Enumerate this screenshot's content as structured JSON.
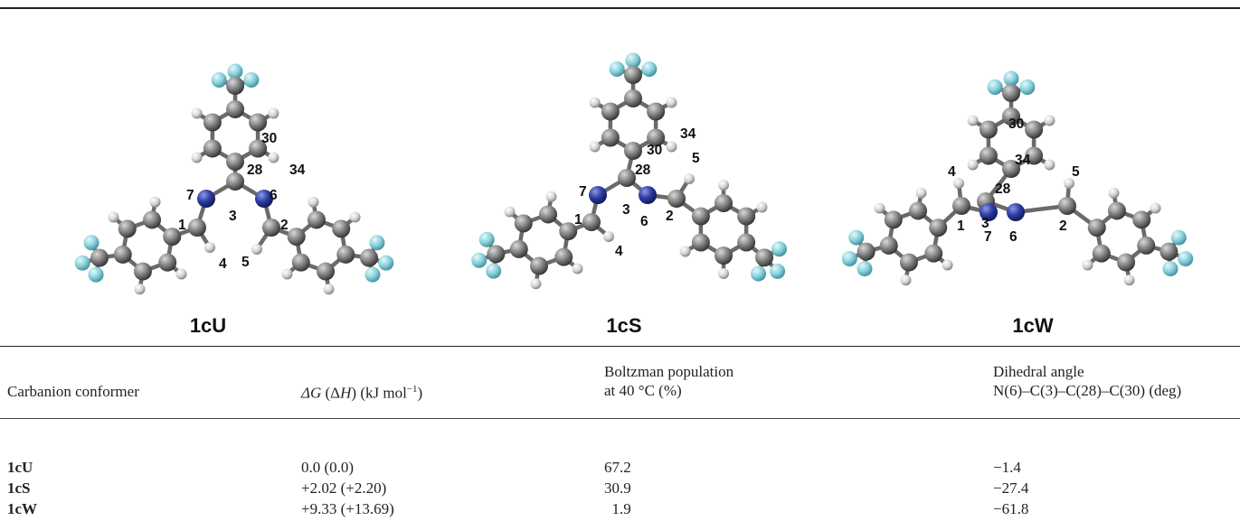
{
  "figure": {
    "conformers": [
      {
        "name": "1cU",
        "numbers": [
          "7",
          "6",
          "1",
          "3",
          "2",
          "28",
          "30",
          "34",
          "4",
          "5"
        ]
      },
      {
        "name": "1cS",
        "numbers": [
          "7",
          "6",
          "1",
          "3",
          "2",
          "28",
          "30",
          "34",
          "4",
          "5"
        ]
      },
      {
        "name": "1cW",
        "numbers": [
          "7",
          "6",
          "1",
          "3",
          "2",
          "28",
          "30",
          "34",
          "4",
          "5"
        ]
      }
    ],
    "atom_colors": {
      "carbon": "#6e6e6e",
      "hydrogen": "#d6d6d6",
      "nitrogen": "#2a3a9a",
      "fluorine": "#7ecbd6"
    }
  },
  "table": {
    "headers": {
      "col1": "Carbanion conformer",
      "col2": {
        "line1": "ΔG (ΔH) (kJ mol",
        "sup": "−1",
        "line1_end": ")"
      },
      "col3": {
        "line1": "Boltzman population",
        "line2": "at 40 °C (%)"
      },
      "col4": {
        "line1": "Dihedral angle",
        "line2": "N(6)–C(3)–C(28)–C(30) (deg)"
      }
    },
    "rows": [
      {
        "conformer": "1cU",
        "dg": "0.0 (0.0)",
        "pop": "67.2",
        "dihedral": "−1.4"
      },
      {
        "conformer": "1cS",
        "dg": "+2.02 (+2.20)",
        "pop": "30.9",
        "dihedral": "−27.4"
      },
      {
        "conformer": "1cW",
        "dg": "+9.33 (+13.69)",
        "pop": "  1.9",
        "dihedral": "−61.8"
      }
    ]
  }
}
